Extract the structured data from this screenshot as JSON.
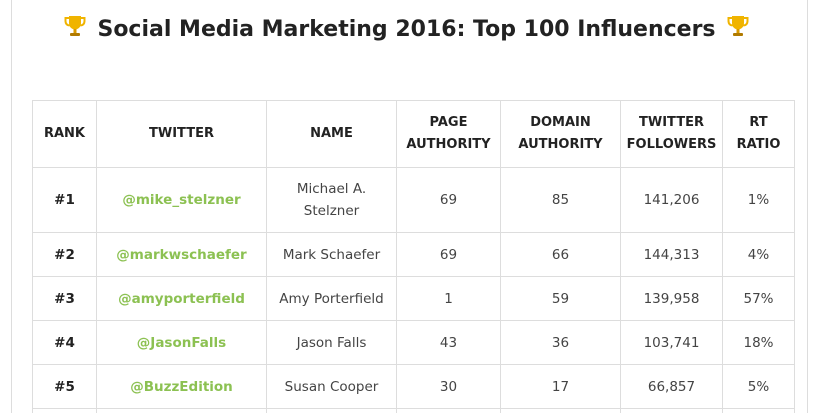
{
  "title": "Social Media Marketing 2016: Top 100 Influencers",
  "icons": {
    "title_left": "trophy-icon",
    "title_right": "trophy-icon"
  },
  "colors": {
    "handle": "#8cc152",
    "trophy": "#f0b400"
  },
  "table": {
    "headers": {
      "rank": "RANK",
      "twitter": "TWITTER",
      "name": "NAME",
      "page_authority_1": "PAGE",
      "page_authority_2": "AUTHORITY",
      "domain_authority_1": "DOMAIN",
      "domain_authority_2": "AUTHORITY",
      "followers_1": "TWITTER",
      "followers_2": "FOLLOWERS",
      "rt_1": "RT",
      "rt_2": "RATIO"
    },
    "rows": [
      {
        "rank": "#1",
        "handle": "@mike_stelzner",
        "name_1": "Michael A.",
        "name_2": "Stelzner",
        "page_authority": "69",
        "domain_authority": "85",
        "followers": "141,206",
        "rt_ratio": "1%"
      },
      {
        "rank": "#2",
        "handle": "@markwschaefer",
        "name_1": "Mark Schaefer",
        "page_authority": "69",
        "domain_authority": "66",
        "followers": "144,313",
        "rt_ratio": "4%"
      },
      {
        "rank": "#3",
        "handle": "@amyporterfield",
        "name_1": "Amy Porterfield",
        "page_authority": "1",
        "domain_authority": "59",
        "followers": "139,958",
        "rt_ratio": "57%"
      },
      {
        "rank": "#4",
        "handle": "@JasonFalls",
        "name_1": "Jason Falls",
        "page_authority": "43",
        "domain_authority": "36",
        "followers": "103,741",
        "rt_ratio": "18%"
      },
      {
        "rank": "#5",
        "handle": "@BuzzEdition",
        "name_1": "Susan Cooper",
        "page_authority": "30",
        "domain_authority": "17",
        "followers": "66,857",
        "rt_ratio": "5%"
      }
    ]
  }
}
